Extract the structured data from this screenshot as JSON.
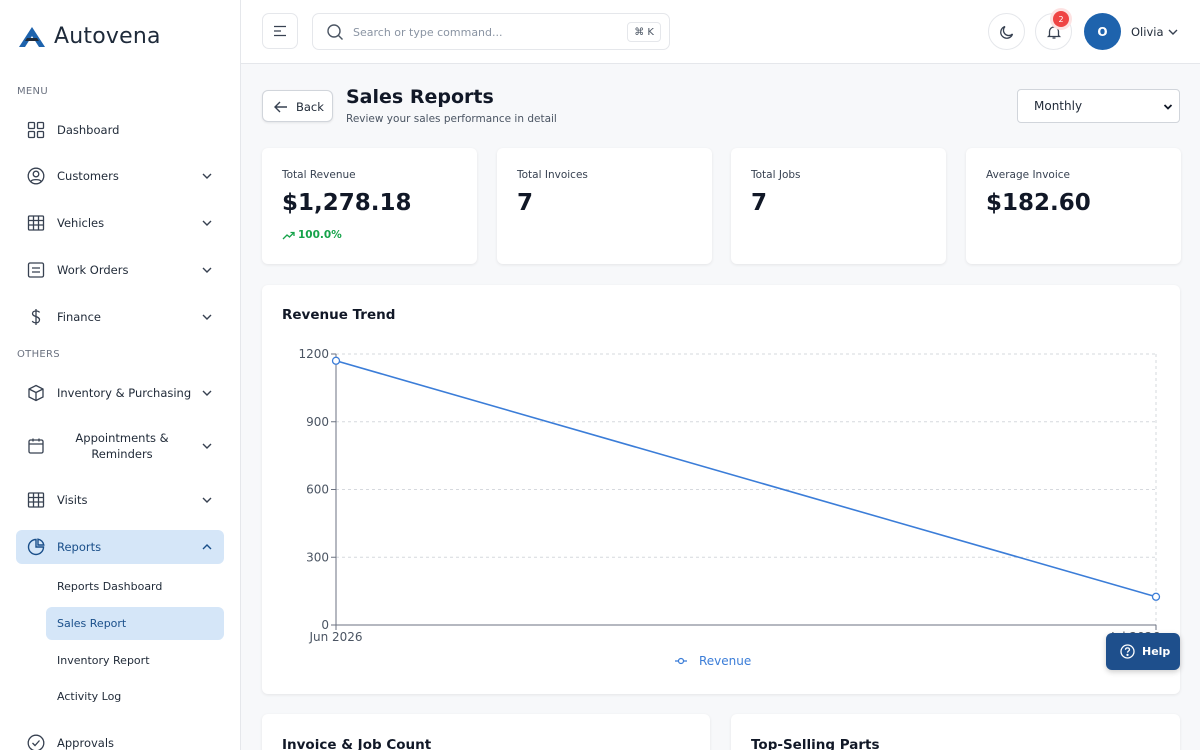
{
  "app": {
    "brand": "Autovena"
  },
  "sidebar": {
    "menu_label": "MENU",
    "others_label": "OTHERS",
    "items": [
      {
        "label": "Dashboard",
        "icon": "dashboard-grid-icon"
      },
      {
        "label": "Customers",
        "icon": "user-circle-icon"
      },
      {
        "label": "Vehicles",
        "icon": "table-grid-icon"
      },
      {
        "label": "Work Orders",
        "icon": "list-box-icon"
      },
      {
        "label": "Finance",
        "icon": "dollar-icon"
      },
      {
        "label": "Inventory & Purchasing",
        "icon": "box-icon"
      },
      {
        "label": "Appointments & Reminders",
        "icon": "calendar-icon"
      },
      {
        "label": "Visits",
        "icon": "table-grid-icon"
      },
      {
        "label": "Reports",
        "icon": "pie-chart-icon"
      },
      {
        "label": "Approvals",
        "icon": "check-circle-icon"
      }
    ],
    "report_sub_items": [
      {
        "label": "Reports Dashboard"
      },
      {
        "label": "Sales Report"
      },
      {
        "label": "Inventory Report"
      },
      {
        "label": "Activity Log"
      }
    ]
  },
  "topbar": {
    "search_placeholder": "Search or type command...",
    "shortcut": "⌘ K",
    "notification_count": "2",
    "user_initial": "O",
    "user_name": "Olivia"
  },
  "page": {
    "back_label": "Back",
    "title": "Sales Reports",
    "subtitle": "Review your sales performance in detail",
    "period": "Monthly"
  },
  "stats": [
    {
      "label": "Total Revenue",
      "value": "$1,278.18",
      "trend": "100.0%"
    },
    {
      "label": "Total Invoices",
      "value": "7"
    },
    {
      "label": "Total Jobs",
      "value": "7"
    },
    {
      "label": "Average Invoice",
      "value": "$182.60"
    }
  ],
  "chart": {
    "title": "Revenue Trend"
  },
  "chart_data": {
    "type": "line",
    "x": [
      "Jun 2026",
      "Jul 2026"
    ],
    "series": [
      {
        "name": "Revenue",
        "values": [
          1170,
          125
        ]
      }
    ],
    "yticks": [
      "0",
      "300",
      "600",
      "900",
      "1200"
    ],
    "ylim": [
      0,
      1200
    ],
    "grid": true,
    "legend": "bottom-center",
    "color": "#3b7dd8"
  },
  "bottom_cards": [
    {
      "title": "Invoice & Job Count"
    },
    {
      "title": "Top-Selling Parts"
    }
  ],
  "help": {
    "label": "Help"
  }
}
